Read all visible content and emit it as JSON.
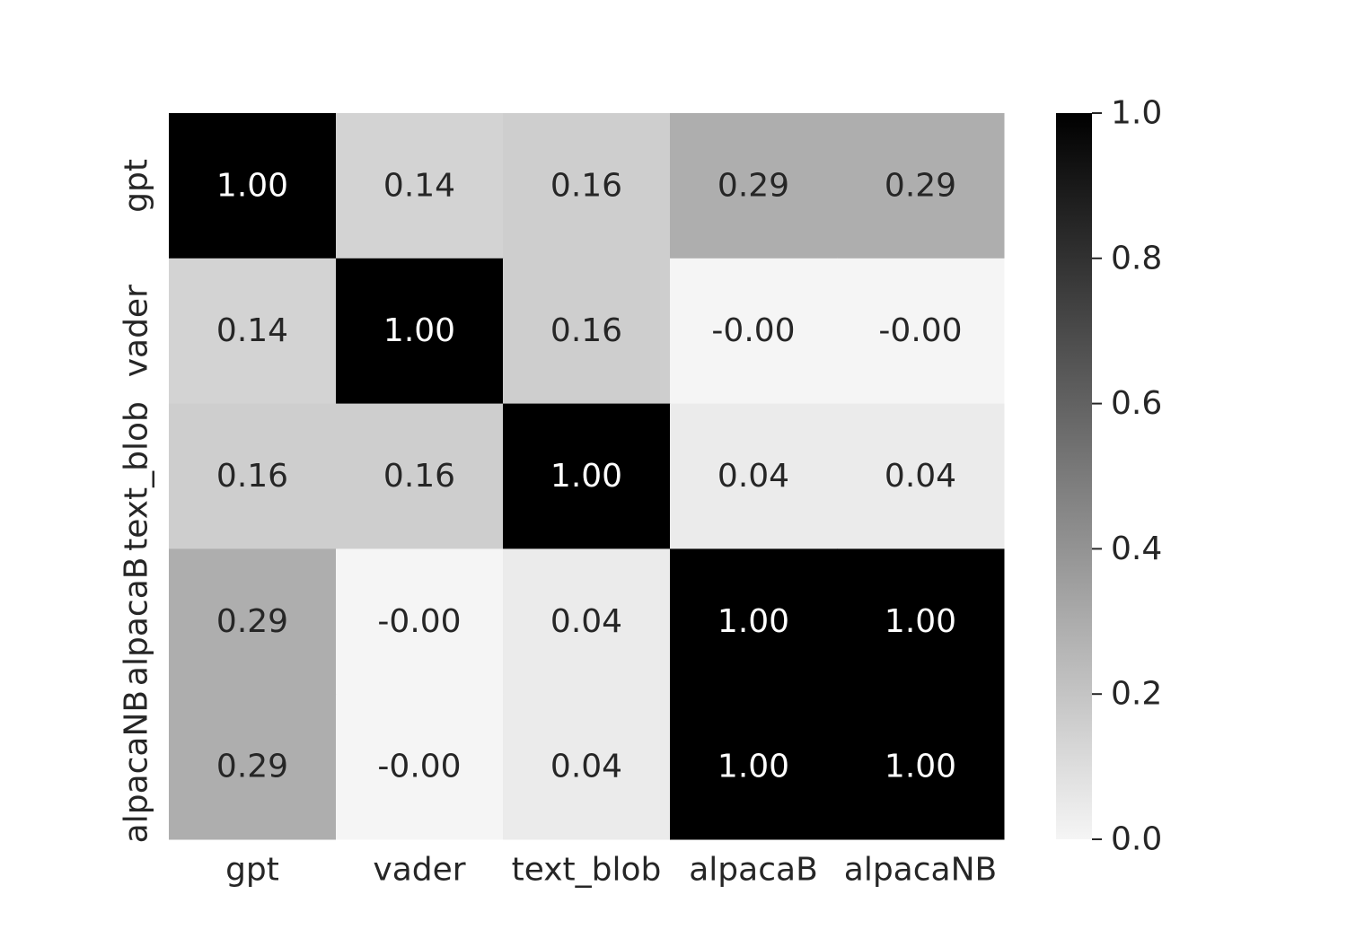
{
  "chart_data": {
    "type": "heatmap",
    "title": "",
    "xlabel": "",
    "ylabel": "",
    "x_categories": [
      "gpt",
      "vader",
      "text_blob",
      "alpacaB",
      "alpacaNB"
    ],
    "y_categories": [
      "gpt",
      "vader",
      "text_blob",
      "alpacaB",
      "alpacaNB"
    ],
    "values": [
      [
        1.0,
        0.14,
        0.16,
        0.29,
        0.29
      ],
      [
        0.14,
        1.0,
        0.16,
        -0.0,
        -0.0
      ],
      [
        0.16,
        0.16,
        1.0,
        0.04,
        0.04
      ],
      [
        0.29,
        -0.0,
        0.04,
        1.0,
        1.0
      ],
      [
        0.29,
        -0.0,
        0.04,
        1.0,
        1.0
      ]
    ],
    "value_labels": [
      [
        "1.00",
        "0.14",
        "0.16",
        "0.29",
        "0.29"
      ],
      [
        "0.14",
        "1.00",
        "0.16",
        "-0.00",
        "-0.00"
      ],
      [
        "0.16",
        "0.16",
        "1.00",
        "0.04",
        "0.04"
      ],
      [
        "0.29",
        "-0.00",
        "0.04",
        "1.00",
        "1.00"
      ],
      [
        "0.29",
        "-0.00",
        "0.04",
        "1.00",
        "1.00"
      ]
    ],
    "colormap": "greys",
    "colormap_low": "#f5f5f5",
    "colormap_high": "#000000",
    "vmin": 0.0,
    "vmax": 1.0,
    "colorbar": {
      "position": "right",
      "ticks": [
        0.0,
        0.2,
        0.4,
        0.6,
        0.8,
        1.0
      ],
      "tick_labels": [
        "0.0",
        "0.2",
        "0.4",
        "0.6",
        "0.8",
        "1.0"
      ]
    },
    "grid": false
  }
}
